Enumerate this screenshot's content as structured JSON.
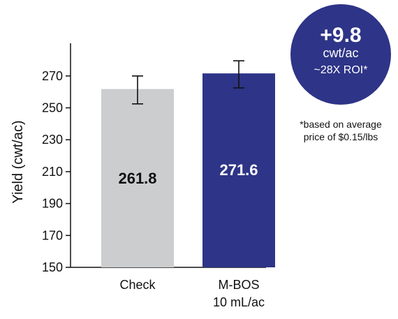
{
  "chart_data": {
    "type": "bar",
    "categories": [
      [
        "Check"
      ],
      [
        "M-BOS",
        "10 mL/ac"
      ]
    ],
    "values": [
      261.8,
      271.6
    ],
    "value_labels": [
      "261.8",
      "271.6"
    ],
    "error_bars": [
      [
        252.5,
        270.0
      ],
      [
        262.5,
        279.5
      ]
    ],
    "ylabel": "Yield (cwt/ac)",
    "ylim": [
      150,
      290
    ],
    "yticks": [
      150,
      170,
      190,
      210,
      230,
      250,
      270
    ],
    "bar_colors": [
      "#cccdcf",
      "#2e3487"
    ],
    "value_label_colors": [
      "#111111",
      "#ffffff"
    ],
    "grid": false
  },
  "badge": {
    "line1": "+9.8",
    "line2": "cwt/ac",
    "line3": "~28X ROI*",
    "color": "#2e3487"
  },
  "footnote": [
    "*based on average",
    "price of $0.15/lbs"
  ]
}
